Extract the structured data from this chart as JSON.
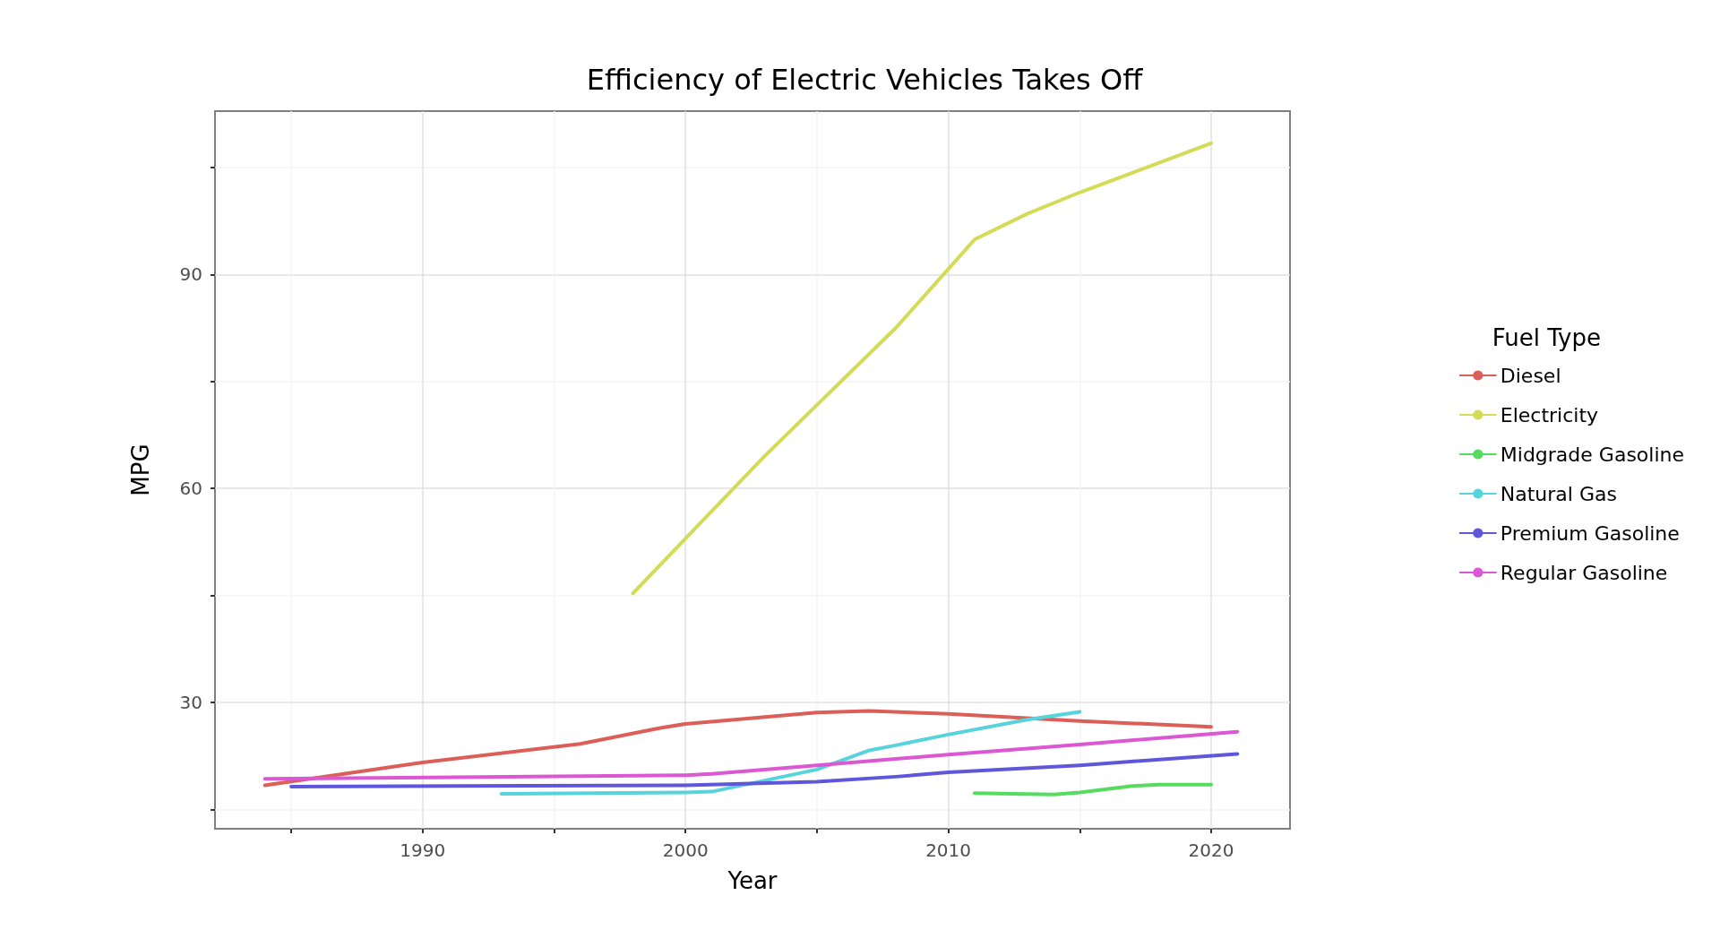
{
  "chart_data": {
    "type": "line",
    "title": "Efficiency of Electric Vehicles Takes Off",
    "xlabel": "Year",
    "ylabel": "MPG",
    "legend_title": "Fuel Type",
    "legend": "right",
    "grid": true,
    "marker": "none",
    "xlim": [
      1982.1,
      2023
    ],
    "ylim": [
      12.3,
      112.9
    ],
    "xticks": [
      {
        "value": 1985,
        "label": null
      },
      1990,
      {
        "value": 1995,
        "label": null
      },
      2000,
      {
        "value": 2005,
        "label": null
      },
      2010,
      {
        "value": 2015,
        "label": null
      },
      2020
    ],
    "yticks": [
      {
        "value": 15,
        "label": null
      },
      30,
      {
        "value": 45,
        "label": null
      },
      60,
      {
        "value": 75,
        "label": null
      },
      90,
      {
        "value": 105,
        "label": null
      }
    ],
    "series": [
      {
        "name": "Diesel",
        "color": "#db5f57",
        "x": [
          1984,
          1990,
          1996,
          1999,
          2000,
          2005,
          2007,
          2010,
          2015,
          2020
        ],
        "values": [
          18.4,
          21.6,
          24.2,
          26.4,
          27,
          28.6,
          28.8,
          28.4,
          27.4,
          26.6
        ]
      },
      {
        "name": "Electricity",
        "color": "#d3db57",
        "x": [
          1998,
          2003,
          2008,
          2011,
          2013,
          2015,
          2020
        ],
        "values": [
          45.3,
          64.5,
          82.5,
          94.9,
          98.5,
          101.5,
          108.4
        ]
      },
      {
        "name": "Midgrade Gasoline",
        "color": "#57db5f",
        "x": [
          2011,
          2014,
          2015,
          2017,
          2018,
          2020
        ],
        "values": [
          17.3,
          17.1,
          17.4,
          18.3,
          18.5,
          18.5
        ]
      },
      {
        "name": "Natural Gas",
        "color": "#57d3db",
        "x": [
          1993,
          2000,
          2001,
          2005,
          2007,
          2008,
          2010,
          2013,
          2015
        ],
        "values": [
          17.2,
          17.4,
          17.5,
          20.6,
          23.3,
          24,
          25.5,
          27.6,
          28.7
        ]
      },
      {
        "name": "Premium Gasoline",
        "color": "#5f57db",
        "x": [
          1985,
          2000,
          2005,
          2008,
          2010,
          2015,
          2021
        ],
        "values": [
          18.2,
          18.4,
          18.9,
          19.6,
          20.2,
          21.2,
          22.8
        ]
      },
      {
        "name": "Regular Gasoline",
        "color": "#db57d3",
        "x": [
          1984,
          2000,
          2001,
          2005,
          2010,
          2015,
          2021
        ],
        "values": [
          19.3,
          19.8,
          20,
          21.2,
          22.7,
          24.1,
          25.9
        ]
      }
    ]
  }
}
